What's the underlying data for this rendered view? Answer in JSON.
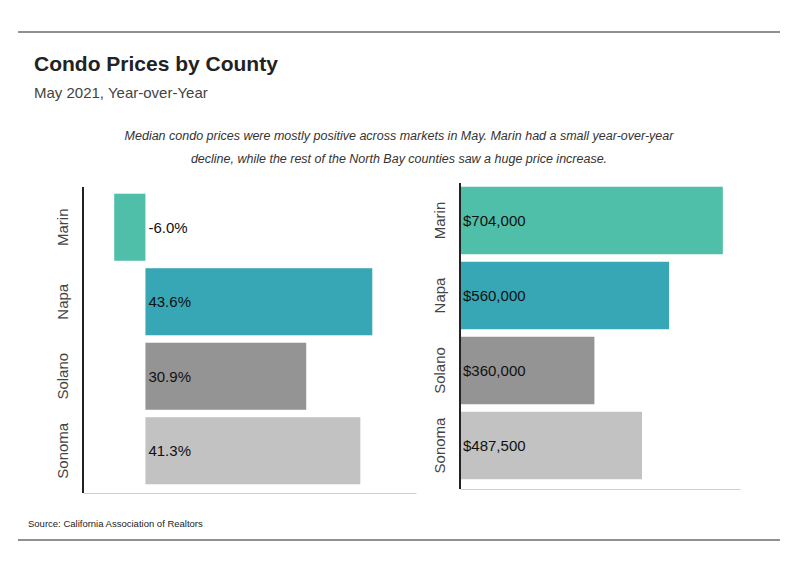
{
  "title": "Condo Prices by County",
  "subtitle": "May 2021, Year-over-Year",
  "annotation": [
    "Median condo prices were mostly positive across markets in May. Marin had a small year-over-year",
    "decline, while the rest of the North Bay counties saw a huge price increase."
  ],
  "source": "Source:  California Association of Realtors",
  "chart_data": [
    {
      "type": "bar",
      "orientation": "horizontal",
      "categories": [
        "Marin",
        "Napa",
        "Solano",
        "Sonoma"
      ],
      "values": [
        -6.0,
        43.6,
        30.9,
        41.3
      ],
      "value_labels": [
        "-6.0%",
        "43.6%",
        "30.9%",
        "41.3%"
      ],
      "colors": [
        "#50bfa9",
        "#37a7b5",
        "#949494",
        "#c2c2c2"
      ],
      "xlim": [
        -12,
        52
      ],
      "data_labels": true,
      "tick_labels": "y"
    },
    {
      "type": "bar",
      "orientation": "horizontal",
      "categories": [
        "Marin",
        "Napa",
        "Solano",
        "Sonoma"
      ],
      "values": [
        704000,
        560000,
        360000,
        487500
      ],
      "value_labels": [
        "$704,000",
        "$560,000",
        "$360,000",
        "$487,500"
      ],
      "colors": [
        "#50bfa9",
        "#37a7b5",
        "#949494",
        "#c2c2c2"
      ],
      "xlim": [
        0,
        750000
      ],
      "data_labels": true,
      "tick_labels": "y"
    }
  ]
}
